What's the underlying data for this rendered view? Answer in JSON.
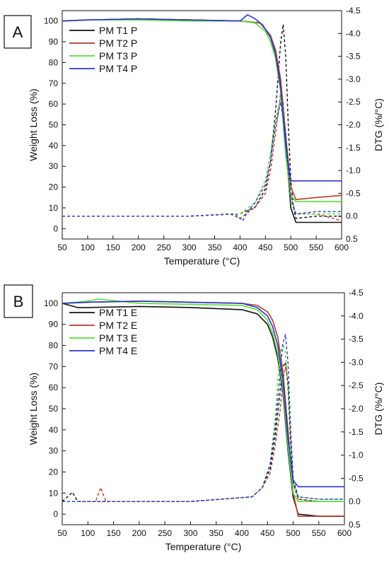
{
  "chart_data": [
    {
      "type": "line",
      "panel_label": "A",
      "xlabel": "Temperature (°C)",
      "ylabel": "Weight Loss (%)",
      "y2label": "DTG (%/°C)",
      "xlim": [
        50,
        600
      ],
      "ylim": [
        -5,
        105
      ],
      "y2lim": [
        0.5,
        -4.5
      ],
      "xticks": [
        50,
        100,
        150,
        200,
        250,
        300,
        350,
        400,
        450,
        500,
        550,
        600
      ],
      "yticks": [
        0,
        10,
        20,
        30,
        40,
        50,
        60,
        70,
        80,
        90,
        100
      ],
      "y2ticks": [
        -4.5,
        -4.0,
        -3.5,
        -3.0,
        -2.5,
        -2.0,
        -1.5,
        -1.0,
        -0.5,
        0.0,
        0.5
      ],
      "y2tick_labels": [
        "-4.5",
        "-4.0",
        "-3.5",
        "-3.0",
        "-2.5",
        "-2.0",
        "-1.5",
        "-1.0",
        "-0.5",
        "0.0",
        "0.5"
      ],
      "legend_position": "top-left",
      "series": [
        {
          "name": "PM T1 P",
          "color": "#111111",
          "weight_x": [
            50,
            100,
            200,
            300,
            400,
            440,
            460,
            470,
            480,
            490,
            500,
            510,
            550,
            600
          ],
          "weight_y": [
            100,
            100.5,
            101,
            100.5,
            100,
            99,
            93,
            85,
            70,
            40,
            10,
            3,
            3,
            3
          ],
          "dtg_x": [
            50,
            150,
            300,
            400,
            430,
            450,
            460,
            470,
            480,
            485,
            490,
            495,
            500,
            505,
            510,
            550,
            600
          ],
          "dtg_y": [
            0,
            0,
            0,
            -0.05,
            -0.2,
            -0.6,
            -1.2,
            -2.3,
            -3.8,
            -4.2,
            -3.5,
            -2.0,
            -0.8,
            -0.2,
            0.05,
            0.0,
            0.0
          ]
        },
        {
          "name": "PM T2 P",
          "color": "#b33a2e",
          "weight_x": [
            50,
            100,
            200,
            300,
            400,
            440,
            460,
            470,
            480,
            490,
            500,
            510,
            550,
            600
          ],
          "weight_y": [
            100,
            100.5,
            101,
            100.5,
            100,
            99,
            93,
            86,
            72,
            45,
            20,
            14,
            15,
            16
          ],
          "dtg_x": [
            50,
            150,
            300,
            380,
            400,
            430,
            450,
            460,
            470,
            480,
            485,
            490,
            495,
            500,
            510,
            550,
            600
          ],
          "dtg_y": [
            0,
            0,
            0,
            -0.05,
            0.05,
            -0.2,
            -0.5,
            -1.0,
            -1.8,
            -2.7,
            -2.5,
            -1.8,
            -1.0,
            -0.4,
            -0.05,
            -0.05,
            0.1
          ]
        },
        {
          "name": "PM T3 P",
          "color": "#55dd3a",
          "weight_x": [
            50,
            100,
            200,
            300,
            400,
            430,
            450,
            460,
            470,
            480,
            490,
            500,
            510,
            550,
            600
          ],
          "weight_y": [
            100,
            100.5,
            100.5,
            100,
            100,
            99,
            95,
            90,
            82,
            66,
            35,
            16,
            13,
            13,
            13
          ],
          "dtg_x": [
            50,
            150,
            300,
            400,
            430,
            450,
            460,
            470,
            480,
            485,
            490,
            495,
            500,
            510,
            550,
            600
          ],
          "dtg_y": [
            0,
            0,
            0,
            -0.05,
            -0.3,
            -0.8,
            -1.4,
            -2.1,
            -2.6,
            -2.4,
            -1.6,
            -0.8,
            -0.3,
            -0.05,
            -0.05,
            -0.05
          ]
        },
        {
          "name": "PM T4 P",
          "color": "#2b35c8",
          "weight_x": [
            50,
            100,
            200,
            300,
            400,
            415,
            430,
            445,
            460,
            470,
            480,
            490,
            500,
            510,
            550,
            600
          ],
          "weight_y": [
            100,
            100.5,
            101,
            100.5,
            100,
            103,
            101,
            98,
            92,
            84,
            68,
            40,
            23,
            23,
            23,
            23
          ],
          "dtg_x": [
            50,
            150,
            300,
            390,
            405,
            415,
            430,
            450,
            460,
            470,
            480,
            490,
            495,
            500,
            510,
            550,
            600
          ],
          "dtg_y": [
            0,
            0,
            0,
            -0.05,
            0.1,
            -0.1,
            -0.3,
            -0.7,
            -1.2,
            -2.0,
            -2.5,
            -1.8,
            -1.0,
            -0.4,
            -0.05,
            -0.1,
            -0.1
          ]
        }
      ]
    },
    {
      "type": "line",
      "panel_label": "B",
      "xlabel": "Temperature (°C)",
      "ylabel": "Weight Loss (%)",
      "y2label": "DTG (%/°C)",
      "xlim": [
        50,
        600
      ],
      "ylim": [
        -5,
        105
      ],
      "y2lim": [
        0.5,
        -4.5
      ],
      "xticks": [
        50,
        100,
        150,
        200,
        250,
        300,
        350,
        400,
        450,
        500,
        550,
        600
      ],
      "yticks": [
        0,
        10,
        20,
        30,
        40,
        50,
        60,
        70,
        80,
        90,
        100
      ],
      "y2ticks": [
        -4.5,
        -4.0,
        -3.5,
        -3.0,
        -2.5,
        -2.0,
        -1.5,
        -1.0,
        -0.5,
        0.0,
        0.5
      ],
      "y2tick_labels": [
        "-4.5",
        "-4.0",
        "-3.5",
        "-3.0",
        "-2.5",
        "-2.0",
        "-1.5",
        "-1.0",
        "-0.5",
        "0.0",
        "0.5"
      ],
      "legend_position": "top-left",
      "series": [
        {
          "name": "PM T1 E",
          "color": "#111111",
          "weight_x": [
            50,
            80,
            100,
            200,
            300,
            400,
            430,
            450,
            460,
            470,
            480,
            490,
            500,
            510,
            550,
            600
          ],
          "weight_y": [
            100,
            98,
            98,
            98.5,
            98,
            97,
            95,
            90,
            84,
            74,
            58,
            30,
            8,
            0,
            -1,
            -1
          ],
          "dtg_x": [
            50,
            70,
            80,
            150,
            300,
            420,
            440,
            455,
            465,
            475,
            480,
            485,
            490,
            495,
            500,
            510,
            550,
            600
          ],
          "dtg_y": [
            0,
            -0.2,
            0,
            0,
            0,
            -0.1,
            -0.3,
            -0.7,
            -1.4,
            -2.4,
            -2.9,
            -3.0,
            -2.5,
            -1.3,
            -0.4,
            -0.05,
            0.0,
            0.0
          ]
        },
        {
          "name": "PM T2 E",
          "color": "#b33a2e",
          "weight_x": [
            50,
            100,
            200,
            300,
            400,
            430,
            450,
            460,
            470,
            480,
            490,
            500,
            510,
            550,
            600
          ],
          "weight_y": [
            100,
            100.5,
            101,
            100.5,
            100,
            99,
            96,
            92,
            84,
            68,
            40,
            10,
            -1,
            -1,
            -1
          ],
          "dtg_x": [
            50,
            115,
            125,
            135,
            150,
            300,
            420,
            440,
            455,
            465,
            475,
            480,
            485,
            490,
            495,
            500,
            510,
            550,
            600
          ],
          "dtg_y": [
            0,
            0,
            -0.3,
            0,
            0,
            0,
            -0.1,
            -0.3,
            -0.6,
            -1.2,
            -2.0,
            -2.6,
            -2.9,
            -2.6,
            -1.5,
            -0.5,
            -0.05,
            0.0,
            0.0
          ]
        },
        {
          "name": "PM T3 E",
          "color": "#55dd3a",
          "weight_x": [
            50,
            100,
            120,
            200,
            300,
            400,
            430,
            450,
            460,
            470,
            480,
            490,
            500,
            510,
            550,
            600
          ],
          "weight_y": [
            100,
            101,
            102,
            100,
            99.5,
            99,
            97,
            92,
            86,
            76,
            60,
            32,
            10,
            6,
            6,
            6
          ],
          "dtg_x": [
            50,
            150,
            300,
            420,
            440,
            455,
            465,
            470,
            475,
            480,
            485,
            490,
            495,
            500,
            510,
            550,
            600
          ],
          "dtg_y": [
            0,
            0,
            0,
            -0.1,
            -0.3,
            -0.8,
            -1.8,
            -2.6,
            -3.2,
            -3.4,
            -3.2,
            -2.5,
            -1.4,
            -0.4,
            -0.1,
            -0.05,
            -0.05
          ]
        },
        {
          "name": "PM T4 E",
          "color": "#2b35c8",
          "weight_x": [
            50,
            100,
            200,
            300,
            400,
            430,
            450,
            460,
            470,
            480,
            490,
            500,
            510,
            550,
            600
          ],
          "weight_y": [
            100,
            100.5,
            101,
            100.5,
            100,
            98,
            94,
            89,
            80,
            64,
            36,
            16,
            13,
            13,
            13
          ],
          "dtg_x": [
            50,
            150,
            300,
            420,
            440,
            455,
            465,
            475,
            480,
            485,
            490,
            495,
            500,
            510,
            550,
            600
          ],
          "dtg_y": [
            0,
            0,
            0,
            -0.1,
            -0.3,
            -0.8,
            -1.6,
            -2.8,
            -3.4,
            -3.6,
            -3.0,
            -1.6,
            -0.5,
            -0.1,
            -0.05,
            -0.05
          ]
        }
      ]
    }
  ]
}
